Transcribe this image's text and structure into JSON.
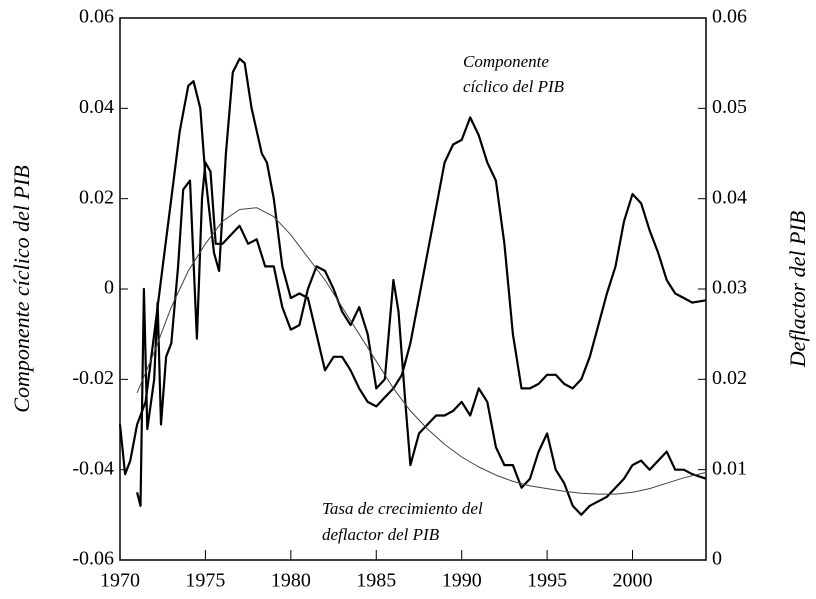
{
  "chart_data": {
    "type": "line",
    "ylabel": "Componente cíclico del PIB",
    "y2label": "Deflactor del PIB",
    "xlim": [
      1970,
      2004.3
    ],
    "xticks": [
      1970,
      1975,
      1980,
      1985,
      1990,
      1995,
      2000
    ],
    "ylim": [
      -0.06,
      0.06
    ],
    "yticks": [
      -0.06,
      -0.04,
      -0.02,
      0,
      0.02,
      0.04,
      0.06
    ],
    "y2lim": [
      0,
      0.06
    ],
    "y2ticks": [
      0,
      0.01,
      0.02,
      0.03,
      0.04,
      0.05,
      0.06
    ],
    "annotations": [
      {
        "text": [
          "Componente",
          "cíclico del PIB"
        ]
      },
      {
        "text": [
          "Tasa de crecimiento del",
          "deflactor del PIB"
        ]
      }
    ],
    "series": [
      {
        "color": "#000000",
        "axis": "y",
        "x": [
          1970.0,
          1970.3,
          1970.6,
          1971.0,
          1971.5,
          1972,
          1972.5,
          1973,
          1973.5,
          1974,
          1974.3,
          1974.7,
          1975,
          1975.5,
          1975.8,
          1976.2,
          1976.6,
          1977,
          1977.3,
          1977.7,
          1978,
          1978.3,
          1978.6,
          1979,
          1979.5,
          1980,
          1980.5,
          1981,
          1981.5,
          1982,
          1982.5,
          1983,
          1983.5,
          1984,
          1984.5,
          1985,
          1985.5,
          1986,
          1986.5,
          1987,
          1987.5,
          1988,
          1988.5,
          1989,
          1989.5,
          1990,
          1990.5,
          1991,
          1991.5,
          1992,
          1992.5,
          1993,
          1993.5,
          1994,
          1994.5,
          1995,
          1995.5,
          1996,
          1996.5,
          1997,
          1997.5,
          1998,
          1998.5,
          1999,
          1999.5,
          2000,
          2000.5,
          2001,
          2001.5,
          2002,
          2002.5,
          2003,
          2003.5,
          2004.3
        ],
        "values": [
          -0.03,
          -0.041,
          -0.038,
          -0.03,
          -0.025,
          -0.01,
          0.005,
          0.02,
          0.035,
          0.045,
          0.046,
          0.04,
          0.025,
          0.008,
          0.004,
          0.03,
          0.048,
          0.051,
          0.05,
          0.04,
          0.035,
          0.03,
          0.028,
          0.02,
          0.005,
          -0.002,
          -0.001,
          -0.002,
          -0.01,
          -0.018,
          -0.015,
          -0.015,
          -0.018,
          -0.022,
          -0.025,
          -0.026,
          -0.024,
          -0.022,
          -0.019,
          -0.012,
          -0.002,
          0.008,
          0.018,
          0.028,
          0.032,
          0.033,
          0.038,
          0.034,
          0.028,
          0.024,
          0.01,
          -0.01,
          -0.022,
          -0.022,
          -0.021,
          -0.019,
          -0.019,
          -0.021,
          -0.022,
          -0.02,
          -0.015,
          -0.008,
          -0.001,
          0.005,
          0.015,
          0.021,
          0.019,
          0.013,
          0.008,
          0.002,
          -0.001,
          -0.002,
          -0.003,
          -0.0025
        ]
      },
      {
        "color": "#000000",
        "axis": "y2",
        "x": [
          1971,
          1971.2,
          1971.4,
          1971.6,
          1972,
          1972.2,
          1972.4,
          1972.7,
          1973,
          1973.4,
          1973.7,
          1974.1,
          1974.5,
          1974.8,
          1975,
          1975.3,
          1975.6,
          1976,
          1976.5,
          1977,
          1977.5,
          1978,
          1978.5,
          1979,
          1979.5,
          1980,
          1980.5,
          1981,
          1981.5,
          1982,
          1982.5,
          1983,
          1983.5,
          1984,
          1984.5,
          1985,
          1985.5,
          1986,
          1986.3,
          1986.7,
          1987,
          1987.5,
          1988,
          1988.5,
          1989,
          1989.5,
          1990,
          1990.5,
          1991,
          1991.5,
          1992,
          1992.5,
          1993,
          1993.5,
          1994,
          1994.5,
          1995,
          1995.5,
          1996,
          1996.5,
          1997,
          1997.5,
          1998,
          1998.5,
          1999,
          1999.5,
          2000,
          2000.5,
          2001,
          2001.5,
          2002,
          2002.5,
          2003,
          2003.5,
          2004.3
        ],
        "values": [
          0.0075,
          0.006,
          0.03,
          0.0145,
          0.02,
          0.0285,
          0.015,
          0.0225,
          0.024,
          0.0325,
          0.041,
          0.042,
          0.0245,
          0.04,
          0.044,
          0.043,
          0.035,
          0.035,
          0.036,
          0.037,
          0.035,
          0.0355,
          0.0325,
          0.0325,
          0.028,
          0.0255,
          0.026,
          0.03,
          0.0325,
          0.032,
          0.03,
          0.0275,
          0.026,
          0.028,
          0.025,
          0.019,
          0.02,
          0.031,
          0.0275,
          0.0175,
          0.0105,
          0.014,
          0.015,
          0.016,
          0.016,
          0.0165,
          0.0175,
          0.016,
          0.019,
          0.0175,
          0.0125,
          0.0105,
          0.0105,
          0.008,
          0.009,
          0.012,
          0.014,
          0.01,
          0.0085,
          0.006,
          0.005,
          0.006,
          0.0065,
          0.007,
          0.008,
          0.009,
          0.0105,
          0.011,
          0.01,
          0.011,
          0.012,
          0.01,
          0.01,
          0.0095,
          0.009
        ]
      },
      {
        "color": "#444444",
        "axis": "y2",
        "x": [
          1971,
          1972,
          1973,
          1974,
          1975,
          1976,
          1977,
          1978,
          1979,
          1980,
          1981,
          1982,
          1983,
          1984,
          1985,
          1986,
          1987,
          1988,
          1989,
          1990,
          1991,
          1992,
          1993,
          1994,
          1995,
          1996,
          1997,
          1998,
          1999,
          2000,
          2001,
          2002,
          2003,
          2004.3
        ],
        "values": [
          0.0185,
          0.023,
          0.028,
          0.032,
          0.035,
          0.0375,
          0.0388,
          0.039,
          0.038,
          0.036,
          0.0335,
          0.031,
          0.028,
          0.025,
          0.022,
          0.019,
          0.0165,
          0.0145,
          0.0128,
          0.0114,
          0.0103,
          0.0094,
          0.0087,
          0.0082,
          0.0079,
          0.0076,
          0.0074,
          0.0073,
          0.0073,
          0.0075,
          0.0079,
          0.0085,
          0.0091,
          0.0097
        ]
      }
    ]
  }
}
